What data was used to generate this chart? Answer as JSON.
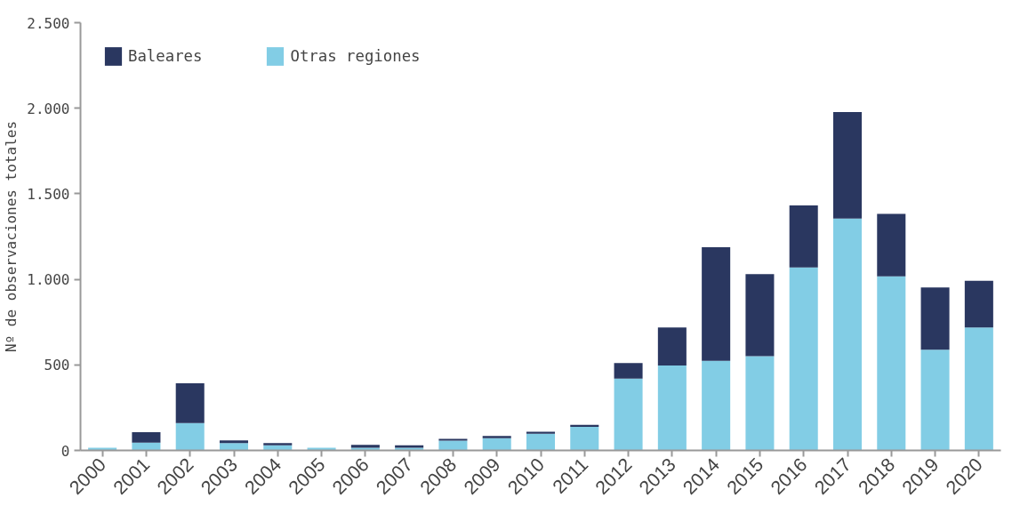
{
  "chart_data": {
    "type": "bar",
    "ylabel": "Nº de observaciones totales",
    "categories": [
      "2000",
      "2001",
      "2002",
      "2003",
      "2004",
      "2005",
      "2006",
      "2007",
      "2008",
      "2009",
      "2010",
      "2011",
      "2012",
      "2013",
      "2014",
      "2015",
      "2016",
      "2017",
      "2018",
      "2019",
      "2020"
    ],
    "series": [
      {
        "name": "Otras regiones",
        "color": "#82cde5",
        "values": [
          15,
          45,
          160,
          43,
          30,
          15,
          15,
          15,
          57,
          71,
          97,
          138,
          420,
          497,
          524,
          551,
          1069,
          1355,
          1017,
          588,
          719
        ]
      },
      {
        "name": "Baleares",
        "color": "#2a3760",
        "values": [
          0,
          62,
          232,
          16,
          13,
          0,
          17,
          15,
          11,
          13,
          12,
          11,
          91,
          222,
          663,
          479,
          363,
          623,
          365,
          365,
          273
        ]
      }
    ],
    "stacked": true,
    "ylim": [
      0,
      2500
    ],
    "yticks": [
      {
        "value": 0,
        "label": "0"
      },
      {
        "value": 500,
        "label": "500"
      },
      {
        "value": 1000,
        "label": "1.000"
      },
      {
        "value": 1500,
        "label": "1.500"
      },
      {
        "value": 2000,
        "label": "2.000"
      },
      {
        "value": 2500,
        "label": "2.500"
      }
    ],
    "grid": false,
    "legend": "top left"
  }
}
